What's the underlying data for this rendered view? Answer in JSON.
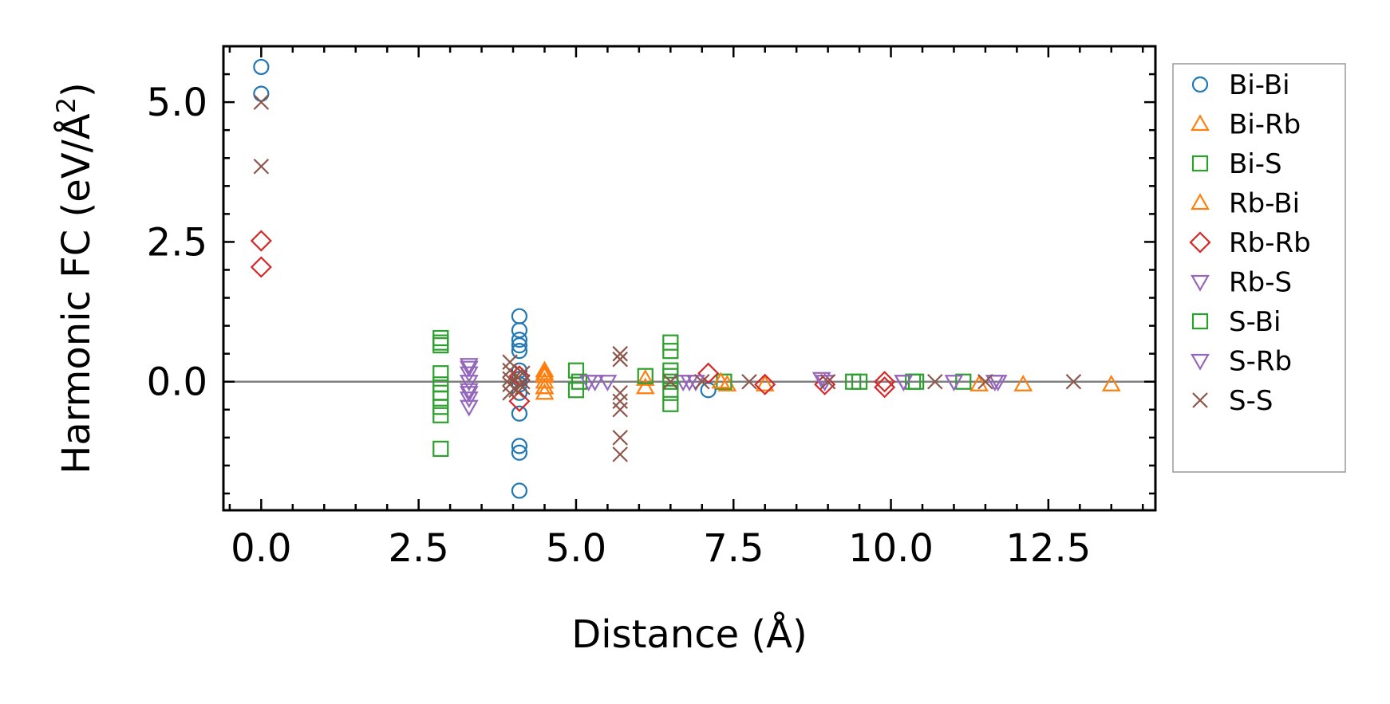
{
  "chart_data": {
    "type": "scatter",
    "xlabel": "Distance (Å)",
    "ylabel": {
      "main": "Harmonic FC (eV/Å",
      "sup": "2",
      "close": ")"
    },
    "xlim": [
      -0.6,
      14.2
    ],
    "ylim": [
      -2.3,
      6.0
    ],
    "xticks": [
      0.0,
      2.5,
      5.0,
      7.5,
      10.0,
      12.5
    ],
    "xtick_labels": [
      "0.0",
      "2.5",
      "5.0",
      "7.5",
      "10.0",
      "12.5"
    ],
    "yticks": [
      0.0,
      2.5,
      5.0
    ],
    "ytick_labels": [
      "0.0",
      "2.5",
      "5.0"
    ],
    "x_minor_step": 0.5,
    "y_minor_step": 0.5,
    "zero_line": 0,
    "legend_position": "outside-right",
    "series": [
      {
        "name": "Bi-Bi",
        "marker": "circle",
        "color": "#1f77b4",
        "points": [
          [
            0,
            5.63
          ],
          [
            0,
            5.15
          ],
          [
            4.1,
            1.17
          ],
          [
            4.1,
            0.92
          ],
          [
            4.1,
            0.75
          ],
          [
            4.1,
            0.65
          ],
          [
            4.1,
            0.55
          ],
          [
            4.1,
            0.2
          ],
          [
            4.1,
            0.05
          ],
          [
            4.1,
            -0.05
          ],
          [
            4.1,
            -0.2
          ],
          [
            4.1,
            -0.57
          ],
          [
            4.1,
            -1.15
          ],
          [
            4.1,
            -1.27
          ],
          [
            4.1,
            -1.95
          ],
          [
            7.1,
            -0.15
          ]
        ]
      },
      {
        "name": "Bi-Rb",
        "marker": "triangle-up",
        "color": "#ff7f0e",
        "points": [
          [
            4.5,
            0.2
          ],
          [
            4.5,
            0.1
          ],
          [
            4.5,
            0.0
          ],
          [
            4.5,
            -0.1
          ],
          [
            4.5,
            -0.2
          ],
          [
            6.1,
            0.05
          ],
          [
            6.1,
            -0.1
          ],
          [
            7.4,
            -0.05
          ],
          [
            8.0,
            -0.05
          ],
          [
            11.4,
            -0.05
          ],
          [
            12.1,
            -0.05
          ],
          [
            13.5,
            -0.05
          ]
        ]
      },
      {
        "name": "Bi-S",
        "marker": "square",
        "color": "#2ca02c",
        "points": [
          [
            2.85,
            0.78
          ],
          [
            2.85,
            0.65
          ],
          [
            2.85,
            0.15
          ],
          [
            2.85,
            -0.05
          ],
          [
            2.85,
            -0.2
          ],
          [
            2.85,
            -0.45
          ],
          [
            2.85,
            -0.6
          ],
          [
            2.85,
            -1.2
          ],
          [
            5.0,
            0.2
          ],
          [
            5.0,
            -0.15
          ],
          [
            6.1,
            0.1
          ],
          [
            6.5,
            0.7
          ],
          [
            6.5,
            0.55
          ],
          [
            6.5,
            0.2
          ],
          [
            6.5,
            0.0
          ],
          [
            6.5,
            -0.2
          ],
          [
            6.5,
            -0.4
          ],
          [
            7.35,
            0.0
          ],
          [
            9.4,
            0.0
          ],
          [
            10.35,
            0.0
          ],
          [
            11.15,
            0.0
          ]
        ]
      },
      {
        "name": "Rb-Bi",
        "marker": "triangle-up",
        "color": "#ff7f0e",
        "points": [
          [
            4.5,
            0.15
          ],
          [
            4.5,
            -0.1
          ],
          [
            7.3,
            0.0
          ]
        ]
      },
      {
        "name": "Rb-Rb",
        "marker": "diamond",
        "color": "#d62728",
        "points": [
          [
            0,
            2.52
          ],
          [
            0,
            2.05
          ],
          [
            4.1,
            0.1
          ],
          [
            4.1,
            -0.35
          ],
          [
            7.1,
            0.15
          ],
          [
            8.0,
            -0.05
          ],
          [
            8.95,
            -0.05
          ],
          [
            9.9,
            0.0
          ],
          [
            9.9,
            -0.1
          ]
        ]
      },
      {
        "name": "Rb-S",
        "marker": "triangle-down",
        "color": "#9467bd",
        "points": [
          [
            3.3,
            0.3
          ],
          [
            3.3,
            0.15
          ],
          [
            3.3,
            0.0
          ],
          [
            3.3,
            -0.15
          ],
          [
            3.3,
            -0.3
          ],
          [
            3.3,
            -0.45
          ],
          [
            5.3,
            0.0
          ],
          [
            5.5,
            0.0
          ],
          [
            6.7,
            0.0
          ],
          [
            6.9,
            0.0
          ],
          [
            8.9,
            0.05
          ],
          [
            10.2,
            0.0
          ],
          [
            11.0,
            0.0
          ],
          [
            11.65,
            0.0
          ]
        ]
      },
      {
        "name": "S-Bi",
        "marker": "square",
        "color": "#2ca02c",
        "points": [
          [
            2.85,
            0.7
          ],
          [
            2.85,
            -0.3
          ],
          [
            5.05,
            0.0
          ],
          [
            6.5,
            0.1
          ],
          [
            9.5,
            0.0
          ],
          [
            10.4,
            0.0
          ]
        ]
      },
      {
        "name": "S-Rb",
        "marker": "triangle-down",
        "color": "#9467bd",
        "points": [
          [
            3.3,
            0.25
          ],
          [
            3.3,
            -0.2
          ],
          [
            5.2,
            0.0
          ],
          [
            6.8,
            0.0
          ],
          [
            8.95,
            0.0
          ],
          [
            10.2,
            0.0
          ],
          [
            11.7,
            0.0
          ]
        ]
      },
      {
        "name": "S-S",
        "marker": "x",
        "color": "#8c564b",
        "points": [
          [
            0,
            5.0
          ],
          [
            0,
            3.85
          ],
          [
            3.95,
            0.35
          ],
          [
            3.95,
            0.2
          ],
          [
            3.95,
            0.05
          ],
          [
            3.95,
            -0.05
          ],
          [
            3.95,
            -0.2
          ],
          [
            4.05,
            0.1
          ],
          [
            4.05,
            -0.15
          ],
          [
            4.15,
            0.15
          ],
          [
            4.15,
            0.0
          ],
          [
            4.15,
            -0.1
          ],
          [
            5.7,
            0.5
          ],
          [
            5.7,
            0.4
          ],
          [
            5.7,
            -0.2
          ],
          [
            5.7,
            -0.35
          ],
          [
            5.7,
            -0.5
          ],
          [
            5.7,
            -1.0
          ],
          [
            5.7,
            -1.3
          ],
          [
            6.5,
            0.0
          ],
          [
            7.0,
            0.0
          ],
          [
            7.75,
            0.0
          ],
          [
            9.0,
            0.0
          ],
          [
            10.7,
            0.0
          ],
          [
            11.5,
            0.0
          ],
          [
            12.9,
            0.0
          ]
        ]
      }
    ]
  }
}
